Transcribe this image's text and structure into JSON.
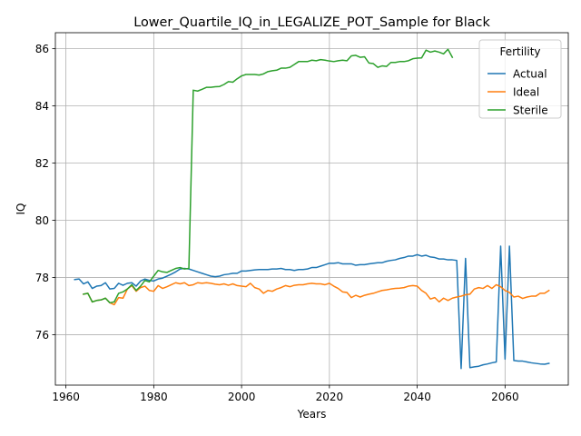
{
  "chart_data": {
    "type": "line",
    "title": "Lower_Quartile_IQ_in_LEGALIZE_POT_Sample for Black",
    "xlabel": "Years",
    "ylabel": "IQ",
    "xlim": [
      1957.6,
      2074.4
    ],
    "ylim": [
      74.24,
      86.56
    ],
    "xticks": [
      1960,
      1980,
      2000,
      2020,
      2040,
      2060
    ],
    "yticks": [
      76,
      78,
      80,
      82,
      84,
      86
    ],
    "grid": true,
    "legend": {
      "title": "Fertility",
      "placement": "top-right"
    },
    "series": [
      {
        "name": "Actual",
        "color": "#1f77b4",
        "x": [
          1962,
          1963,
          1964,
          1965,
          1966,
          1967,
          1968,
          1969,
          1970,
          1971,
          1972,
          1973,
          1974,
          1975,
          1976,
          1977,
          1978,
          1979,
          1980,
          1981,
          1982,
          1983,
          1984,
          1985,
          1986,
          1987,
          1988,
          1989,
          1990,
          1991,
          1992,
          1993,
          1994,
          1995,
          1996,
          1997,
          1998,
          1999,
          2000,
          2001,
          2002,
          2003,
          2004,
          2005,
          2006,
          2007,
          2008,
          2009,
          2010,
          2011,
          2012,
          2013,
          2014,
          2015,
          2016,
          2017,
          2018,
          2019,
          2020,
          2021,
          2022,
          2023,
          2024,
          2025,
          2026,
          2027,
          2028,
          2029,
          2030,
          2031,
          2032,
          2033,
          2034,
          2035,
          2036,
          2037,
          2038,
          2039,
          2040,
          2041,
          2042,
          2043,
          2044,
          2045,
          2046,
          2047,
          2048,
          2049,
          2050,
          2051,
          2052,
          2053,
          2054,
          2055,
          2056,
          2057,
          2058,
          2059,
          2060,
          2061,
          2062,
          2063,
          2064,
          2065,
          2066,
          2067,
          2068,
          2069,
          2070
        ],
        "values": [
          77.93,
          77.95,
          77.78,
          77.85,
          77.62,
          77.7,
          77.72,
          77.82,
          77.6,
          77.62,
          77.8,
          77.73,
          77.8,
          77.82,
          77.7,
          77.88,
          77.95,
          77.9,
          77.88,
          77.95,
          77.98,
          78.05,
          78.12,
          78.2,
          78.3,
          78.32,
          78.3,
          78.25,
          78.2,
          78.15,
          78.1,
          78.05,
          78.03,
          78.05,
          78.1,
          78.12,
          78.15,
          78.15,
          78.23,
          78.23,
          78.25,
          78.27,
          78.28,
          78.28,
          78.28,
          78.3,
          78.3,
          78.32,
          78.28,
          78.28,
          78.25,
          78.28,
          78.28,
          78.3,
          78.35,
          78.35,
          78.4,
          78.45,
          78.5,
          78.5,
          78.52,
          78.48,
          78.48,
          78.48,
          78.43,
          78.45,
          78.45,
          78.48,
          78.5,
          78.52,
          78.52,
          78.57,
          78.6,
          78.62,
          78.67,
          78.7,
          78.75,
          78.75,
          78.8,
          78.75,
          78.78,
          78.72,
          78.7,
          78.65,
          78.65,
          78.62,
          78.62,
          78.6,
          74.82,
          78.67,
          74.85,
          74.88,
          74.9,
          74.95,
          74.98,
          75.02,
          75.05,
          79.1,
          75.15,
          79.1,
          75.1,
          75.08,
          75.08,
          75.05,
          75.02,
          75.0,
          74.98,
          74.97,
          75.0
        ]
      },
      {
        "name": "Ideal",
        "color": "#ff7f0e",
        "x": [
          1964,
          1965,
          1966,
          1967,
          1968,
          1969,
          1970,
          1971,
          1972,
          1973,
          1974,
          1975,
          1976,
          1977,
          1978,
          1979,
          1980,
          1981,
          1982,
          1983,
          1984,
          1985,
          1986,
          1987,
          1988,
          1989,
          1990,
          1991,
          1992,
          1993,
          1994,
          1995,
          1996,
          1997,
          1998,
          1999,
          2000,
          2001,
          2002,
          2003,
          2004,
          2005,
          2006,
          2007,
          2008,
          2009,
          2010,
          2011,
          2012,
          2013,
          2014,
          2015,
          2016,
          2017,
          2018,
          2019,
          2020,
          2021,
          2022,
          2023,
          2024,
          2025,
          2026,
          2027,
          2028,
          2029,
          2030,
          2031,
          2032,
          2033,
          2034,
          2035,
          2036,
          2037,
          2038,
          2039,
          2040,
          2041,
          2042,
          2043,
          2044,
          2045,
          2046,
          2047,
          2048,
          2049,
          2050,
          2051,
          2052,
          2053,
          2054,
          2055,
          2056,
          2057,
          2058,
          2059,
          2060,
          2061,
          2062,
          2063,
          2064,
          2065,
          2066,
          2067,
          2068,
          2069,
          2070
        ],
        "values": [
          77.42,
          77.45,
          77.15,
          77.2,
          77.22,
          77.28,
          77.12,
          77.05,
          77.3,
          77.28,
          77.6,
          77.72,
          77.52,
          77.65,
          77.7,
          77.55,
          77.52,
          77.72,
          77.62,
          77.68,
          77.75,
          77.82,
          77.78,
          77.82,
          77.72,
          77.75,
          77.82,
          77.8,
          77.82,
          77.8,
          77.77,
          77.75,
          77.78,
          77.73,
          77.78,
          77.72,
          77.7,
          77.68,
          77.8,
          77.65,
          77.6,
          77.45,
          77.55,
          77.52,
          77.6,
          77.65,
          77.72,
          77.68,
          77.73,
          77.75,
          77.75,
          77.78,
          77.8,
          77.78,
          77.78,
          77.75,
          77.8,
          77.7,
          77.62,
          77.5,
          77.48,
          77.3,
          77.38,
          77.32,
          77.38,
          77.42,
          77.45,
          77.5,
          77.55,
          77.57,
          77.6,
          77.62,
          77.63,
          77.65,
          77.7,
          77.72,
          77.7,
          77.55,
          77.45,
          77.25,
          77.3,
          77.15,
          77.28,
          77.2,
          77.28,
          77.32,
          77.35,
          77.4,
          77.42,
          77.6,
          77.65,
          77.62,
          77.72,
          77.62,
          77.75,
          77.68,
          77.55,
          77.48,
          77.32,
          77.35,
          77.27,
          77.32,
          77.35,
          77.35,
          77.45,
          77.45,
          77.55
        ]
      },
      {
        "name": "Sterile",
        "color": "#2ca02c",
        "x": [
          1964,
          1965,
          1966,
          1967,
          1968,
          1969,
          1970,
          1971,
          1972,
          1973,
          1974,
          1975,
          1976,
          1977,
          1978,
          1979,
          1980,
          1981,
          1982,
          1983,
          1984,
          1985,
          1986,
          1987,
          1988,
          1989,
          1990,
          1991,
          1992,
          1993,
          1994,
          1995,
          1996,
          1997,
          1998,
          1999,
          2000,
          2001,
          2002,
          2003,
          2004,
          2005,
          2006,
          2007,
          2008,
          2009,
          2010,
          2011,
          2012,
          2013,
          2014,
          2015,
          2016,
          2017,
          2018,
          2019,
          2020,
          2021,
          2022,
          2023,
          2024,
          2025,
          2026,
          2027,
          2028,
          2029,
          2030,
          2031,
          2032,
          2033,
          2034,
          2035,
          2036,
          2037,
          2038,
          2039,
          2040,
          2041,
          2042,
          2043,
          2044,
          2045,
          2046,
          2047,
          2048
        ],
        "values": [
          77.42,
          77.45,
          77.15,
          77.2,
          77.22,
          77.28,
          77.12,
          77.15,
          77.45,
          77.5,
          77.6,
          77.75,
          77.55,
          77.7,
          77.9,
          77.85,
          78.05,
          78.25,
          78.2,
          78.18,
          78.25,
          78.32,
          78.35,
          78.3,
          78.32,
          84.55,
          84.52,
          84.58,
          84.65,
          84.65,
          84.67,
          84.68,
          84.75,
          84.85,
          84.83,
          84.95,
          85.05,
          85.1,
          85.1,
          85.1,
          85.08,
          85.12,
          85.2,
          85.23,
          85.25,
          85.32,
          85.32,
          85.35,
          85.45,
          85.55,
          85.55,
          85.55,
          85.6,
          85.58,
          85.62,
          85.6,
          85.57,
          85.55,
          85.58,
          85.6,
          85.58,
          85.75,
          85.77,
          85.7,
          85.72,
          85.5,
          85.48,
          85.35,
          85.4,
          85.38,
          85.52,
          85.52,
          85.55,
          85.55,
          85.58,
          85.65,
          85.67,
          85.68,
          85.95,
          85.88,
          85.92,
          85.88,
          85.82,
          85.98,
          85.7
        ]
      }
    ]
  }
}
